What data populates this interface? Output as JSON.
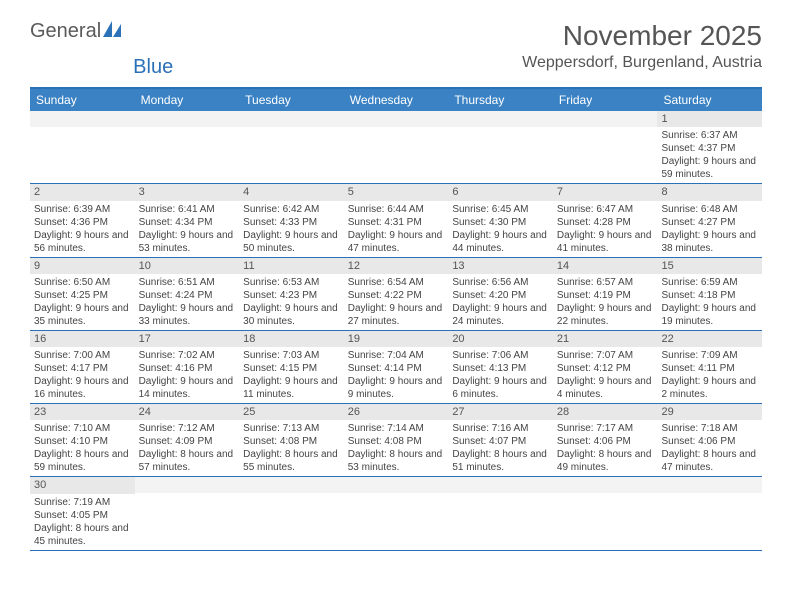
{
  "logo": {
    "text_a": "General",
    "text_b": "Blue"
  },
  "title": "November 2025",
  "location": "Weppersdorf, Burgenland, Austria",
  "header_bg": "#3a82c4",
  "border_color": "#2b71b8",
  "day_headers": [
    "Sunday",
    "Monday",
    "Tuesday",
    "Wednesday",
    "Thursday",
    "Friday",
    "Saturday"
  ],
  "weeks": [
    [
      {
        "n": "",
        "sr": "",
        "ss": "",
        "dl": ""
      },
      {
        "n": "",
        "sr": "",
        "ss": "",
        "dl": ""
      },
      {
        "n": "",
        "sr": "",
        "ss": "",
        "dl": ""
      },
      {
        "n": "",
        "sr": "",
        "ss": "",
        "dl": ""
      },
      {
        "n": "",
        "sr": "",
        "ss": "",
        "dl": ""
      },
      {
        "n": "",
        "sr": "",
        "ss": "",
        "dl": ""
      },
      {
        "n": "1",
        "sr": "Sunrise: 6:37 AM",
        "ss": "Sunset: 4:37 PM",
        "dl": "Daylight: 9 hours and 59 minutes."
      }
    ],
    [
      {
        "n": "2",
        "sr": "Sunrise: 6:39 AM",
        "ss": "Sunset: 4:36 PM",
        "dl": "Daylight: 9 hours and 56 minutes."
      },
      {
        "n": "3",
        "sr": "Sunrise: 6:41 AM",
        "ss": "Sunset: 4:34 PM",
        "dl": "Daylight: 9 hours and 53 minutes."
      },
      {
        "n": "4",
        "sr": "Sunrise: 6:42 AM",
        "ss": "Sunset: 4:33 PM",
        "dl": "Daylight: 9 hours and 50 minutes."
      },
      {
        "n": "5",
        "sr": "Sunrise: 6:44 AM",
        "ss": "Sunset: 4:31 PM",
        "dl": "Daylight: 9 hours and 47 minutes."
      },
      {
        "n": "6",
        "sr": "Sunrise: 6:45 AM",
        "ss": "Sunset: 4:30 PM",
        "dl": "Daylight: 9 hours and 44 minutes."
      },
      {
        "n": "7",
        "sr": "Sunrise: 6:47 AM",
        "ss": "Sunset: 4:28 PM",
        "dl": "Daylight: 9 hours and 41 minutes."
      },
      {
        "n": "8",
        "sr": "Sunrise: 6:48 AM",
        "ss": "Sunset: 4:27 PM",
        "dl": "Daylight: 9 hours and 38 minutes."
      }
    ],
    [
      {
        "n": "9",
        "sr": "Sunrise: 6:50 AM",
        "ss": "Sunset: 4:25 PM",
        "dl": "Daylight: 9 hours and 35 minutes."
      },
      {
        "n": "10",
        "sr": "Sunrise: 6:51 AM",
        "ss": "Sunset: 4:24 PM",
        "dl": "Daylight: 9 hours and 33 minutes."
      },
      {
        "n": "11",
        "sr": "Sunrise: 6:53 AM",
        "ss": "Sunset: 4:23 PM",
        "dl": "Daylight: 9 hours and 30 minutes."
      },
      {
        "n": "12",
        "sr": "Sunrise: 6:54 AM",
        "ss": "Sunset: 4:22 PM",
        "dl": "Daylight: 9 hours and 27 minutes."
      },
      {
        "n": "13",
        "sr": "Sunrise: 6:56 AM",
        "ss": "Sunset: 4:20 PM",
        "dl": "Daylight: 9 hours and 24 minutes."
      },
      {
        "n": "14",
        "sr": "Sunrise: 6:57 AM",
        "ss": "Sunset: 4:19 PM",
        "dl": "Daylight: 9 hours and 22 minutes."
      },
      {
        "n": "15",
        "sr": "Sunrise: 6:59 AM",
        "ss": "Sunset: 4:18 PM",
        "dl": "Daylight: 9 hours and 19 minutes."
      }
    ],
    [
      {
        "n": "16",
        "sr": "Sunrise: 7:00 AM",
        "ss": "Sunset: 4:17 PM",
        "dl": "Daylight: 9 hours and 16 minutes."
      },
      {
        "n": "17",
        "sr": "Sunrise: 7:02 AM",
        "ss": "Sunset: 4:16 PM",
        "dl": "Daylight: 9 hours and 14 minutes."
      },
      {
        "n": "18",
        "sr": "Sunrise: 7:03 AM",
        "ss": "Sunset: 4:15 PM",
        "dl": "Daylight: 9 hours and 11 minutes."
      },
      {
        "n": "19",
        "sr": "Sunrise: 7:04 AM",
        "ss": "Sunset: 4:14 PM",
        "dl": "Daylight: 9 hours and 9 minutes."
      },
      {
        "n": "20",
        "sr": "Sunrise: 7:06 AM",
        "ss": "Sunset: 4:13 PM",
        "dl": "Daylight: 9 hours and 6 minutes."
      },
      {
        "n": "21",
        "sr": "Sunrise: 7:07 AM",
        "ss": "Sunset: 4:12 PM",
        "dl": "Daylight: 9 hours and 4 minutes."
      },
      {
        "n": "22",
        "sr": "Sunrise: 7:09 AM",
        "ss": "Sunset: 4:11 PM",
        "dl": "Daylight: 9 hours and 2 minutes."
      }
    ],
    [
      {
        "n": "23",
        "sr": "Sunrise: 7:10 AM",
        "ss": "Sunset: 4:10 PM",
        "dl": "Daylight: 8 hours and 59 minutes."
      },
      {
        "n": "24",
        "sr": "Sunrise: 7:12 AM",
        "ss": "Sunset: 4:09 PM",
        "dl": "Daylight: 8 hours and 57 minutes."
      },
      {
        "n": "25",
        "sr": "Sunrise: 7:13 AM",
        "ss": "Sunset: 4:08 PM",
        "dl": "Daylight: 8 hours and 55 minutes."
      },
      {
        "n": "26",
        "sr": "Sunrise: 7:14 AM",
        "ss": "Sunset: 4:08 PM",
        "dl": "Daylight: 8 hours and 53 minutes."
      },
      {
        "n": "27",
        "sr": "Sunrise: 7:16 AM",
        "ss": "Sunset: 4:07 PM",
        "dl": "Daylight: 8 hours and 51 minutes."
      },
      {
        "n": "28",
        "sr": "Sunrise: 7:17 AM",
        "ss": "Sunset: 4:06 PM",
        "dl": "Daylight: 8 hours and 49 minutes."
      },
      {
        "n": "29",
        "sr": "Sunrise: 7:18 AM",
        "ss": "Sunset: 4:06 PM",
        "dl": "Daylight: 8 hours and 47 minutes."
      }
    ],
    [
      {
        "n": "30",
        "sr": "Sunrise: 7:19 AM",
        "ss": "Sunset: 4:05 PM",
        "dl": "Daylight: 8 hours and 45 minutes."
      },
      {
        "n": "",
        "sr": "",
        "ss": "",
        "dl": ""
      },
      {
        "n": "",
        "sr": "",
        "ss": "",
        "dl": ""
      },
      {
        "n": "",
        "sr": "",
        "ss": "",
        "dl": ""
      },
      {
        "n": "",
        "sr": "",
        "ss": "",
        "dl": ""
      },
      {
        "n": "",
        "sr": "",
        "ss": "",
        "dl": ""
      },
      {
        "n": "",
        "sr": "",
        "ss": "",
        "dl": ""
      }
    ]
  ]
}
